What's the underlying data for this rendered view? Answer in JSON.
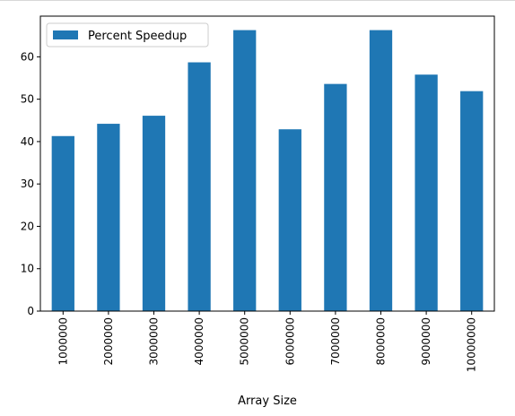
{
  "chart_data": {
    "type": "bar",
    "categories": [
      "1000000",
      "2000000",
      "3000000",
      "4000000",
      "5000000",
      "6000000",
      "7000000",
      "8000000",
      "9000000",
      "10000000"
    ],
    "series": [
      {
        "name": "Percent Speedup",
        "values": [
          41.3,
          44.2,
          46.1,
          58.7,
          66.3,
          42.9,
          53.6,
          66.3,
          55.8,
          51.9
        ],
        "color": "#1f77b4"
      }
    ],
    "xlabel": "Array Size",
    "ylabel": "",
    "ylim": [
      0,
      69.6
    ],
    "yticks": [
      0,
      10,
      20,
      30,
      40,
      50,
      60
    ],
    "grid": false,
    "legend": "top-left"
  }
}
